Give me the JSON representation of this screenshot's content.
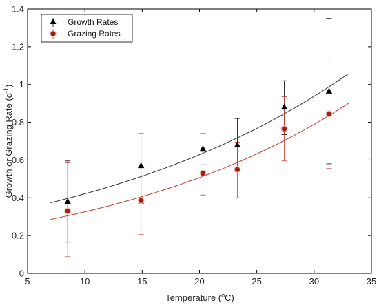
{
  "chart_data": {
    "type": "scatter",
    "xlabel": "Temperature (",
    "xlabel_sup": "o",
    "xlabel_suffix": "C)",
    "ylabel": "Growth or Grazing Rate (d",
    "ylabel_sup": "-1",
    "ylabel_suffix": ")",
    "xlim": [
      5,
      35
    ],
    "ylim": [
      0,
      1.4
    ],
    "x_ticks": [
      "5",
      "10",
      "15",
      "20",
      "25",
      "30",
      "35"
    ],
    "y_ticks": [
      "0",
      "0.2",
      "0.4",
      "0.6",
      "0.8",
      "1",
      "1.2",
      "1.4"
    ],
    "grid": false,
    "legend_position": "top-left",
    "series": [
      {
        "name": "Growth Rates",
        "marker": "triangle",
        "color": "#000000",
        "x": [
          8.5,
          14.9,
          20.3,
          23.3,
          27.4,
          31.3
        ],
        "y": [
          0.38,
          0.57,
          0.66,
          0.68,
          0.88,
          0.965
        ],
        "err_low": [
          0.165,
          0.37,
          0.575,
          0.54,
          0.735,
          0.58
        ],
        "err_high": [
          0.595,
          0.74,
          0.74,
          0.82,
          1.02,
          1.35
        ],
        "fit": {
          "x0": 7,
          "x1": 33,
          "a": 0.2824,
          "b": 0.04
        }
      },
      {
        "name": "Grazing Rates",
        "marker": "circle",
        "color": "#a0200e",
        "x": [
          8.5,
          14.9,
          20.3,
          23.3,
          27.4,
          31.3
        ],
        "y": [
          0.33,
          0.385,
          0.53,
          0.55,
          0.765,
          0.845
        ],
        "err_low": [
          0.088,
          0.205,
          0.415,
          0.4,
          0.595,
          0.555
        ],
        "err_high": [
          0.585,
          0.565,
          0.645,
          0.695,
          0.935,
          1.135
        ],
        "fit": {
          "x0": 7,
          "x1": 33,
          "a": 0.2095,
          "b": 0.0442
        }
      }
    ]
  }
}
